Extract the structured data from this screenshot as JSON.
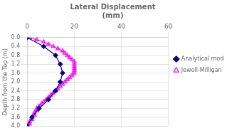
{
  "chart_data": {
    "type": "line",
    "title": "Lateral Displacement\n(mm)",
    "ylabel": "Depth from the Top (m)",
    "xlim": [
      0,
      60
    ],
    "ylim": [
      4,
      0
    ],
    "xticks": [
      0,
      20,
      40,
      60
    ],
    "yticks": [
      {
        "value": 0,
        "label": "0.0"
      },
      0.4,
      0.8,
      1.2,
      1.6,
      {
        "value": 2,
        "label": "2.0"
      },
      2.4,
      2.8,
      3.2,
      3.6,
      {
        "value": 4,
        "label": "4.0"
      }
    ],
    "grid": true,
    "legend": "right",
    "series": [
      {
        "name": "Analytical model",
        "color": "#00008B",
        "marker": "diamond",
        "x": [
          0,
          7,
          12,
          14,
          15,
          14,
          12,
          9,
          5,
          2,
          0
        ],
        "y": [
          0,
          0.4,
          0.8,
          1.2,
          1.6,
          2.0,
          2.4,
          2.8,
          3.2,
          3.6,
          4.0
        ]
      },
      {
        "name": "Jewell-Milligan method",
        "color": "#FF00FF",
        "marker": "triangle",
        "x": [
          1,
          4,
          7,
          9,
          11,
          13,
          15,
          16,
          17,
          18,
          19,
          20,
          20,
          20,
          20,
          20,
          20,
          19,
          18,
          17,
          16,
          15,
          14,
          13,
          12,
          11,
          10,
          9,
          8,
          7,
          6,
          5,
          4,
          4,
          3,
          3,
          2,
          2,
          1,
          1,
          0
        ],
        "y": [
          0,
          0.1,
          0.2,
          0.3,
          0.4,
          0.5,
          0.6,
          0.7,
          0.8,
          0.9,
          1.0,
          1.1,
          1.2,
          1.3,
          1.4,
          1.5,
          1.6,
          1.7,
          1.8,
          1.9,
          2.0,
          2.1,
          2.2,
          2.3,
          2.4,
          2.5,
          2.6,
          2.7,
          2.8,
          2.9,
          3.0,
          3.1,
          3.2,
          3.3,
          3.4,
          3.5,
          3.6,
          3.7,
          3.8,
          3.9,
          4.0
        ]
      }
    ]
  }
}
